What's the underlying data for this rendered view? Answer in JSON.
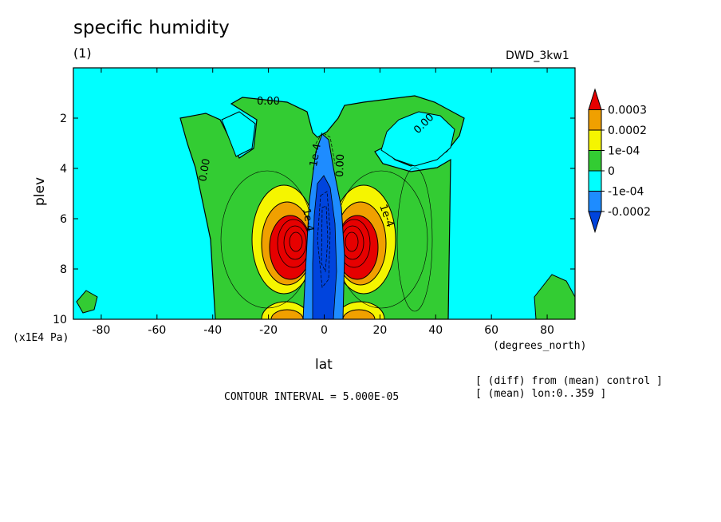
{
  "header": {
    "title": "specific humidity",
    "subtitle": "(1)",
    "model": "DWD_3kw1"
  },
  "footer": {
    "contour_interval": "CONTOUR INTERVAL = 5.000E-05",
    "note1": "[ (diff) from (mean) control ]",
    "note2": "[ (mean) lon:0..359 ]"
  },
  "chart_data": {
    "type": "contour",
    "title": "specific humidity",
    "xlabel": "lat",
    "xunits": "(degrees_north)",
    "ylabel": "plev",
    "yunits": "(x1E4 Pa)",
    "xlim": [
      -90,
      90
    ],
    "ylim": [
      10,
      0
    ],
    "x_ticks": [
      -80,
      -60,
      -40,
      -20,
      0,
      20,
      40,
      60,
      80
    ],
    "y_ticks": [
      2,
      4,
      6,
      8,
      10
    ],
    "contour_labels": [
      "0.00",
      "0.00",
      "0.00",
      "0.00",
      "1e-4",
      "1e-4",
      "-1e-4"
    ],
    "colorbar": {
      "levels": [
        "0.0003",
        "0.0002",
        "1e-04",
        "0",
        "-1e-04",
        "-0.0002"
      ],
      "colors": [
        "#e60000",
        "#f0a000",
        "#f5f500",
        "#33cc33",
        "#00ffff",
        "#1e8cff",
        "#0044dd"
      ]
    },
    "features": [
      {
        "name": "positive max SH",
        "lat": -11,
        "plev": 7.0,
        "value": 0.0003
      },
      {
        "name": "positive max NH",
        "lat": 11,
        "plev": 7.0,
        "value": 0.0003
      },
      {
        "name": "negative equatorial band",
        "lat": 0,
        "plev": 6.5,
        "value": -0.0002
      }
    ]
  }
}
